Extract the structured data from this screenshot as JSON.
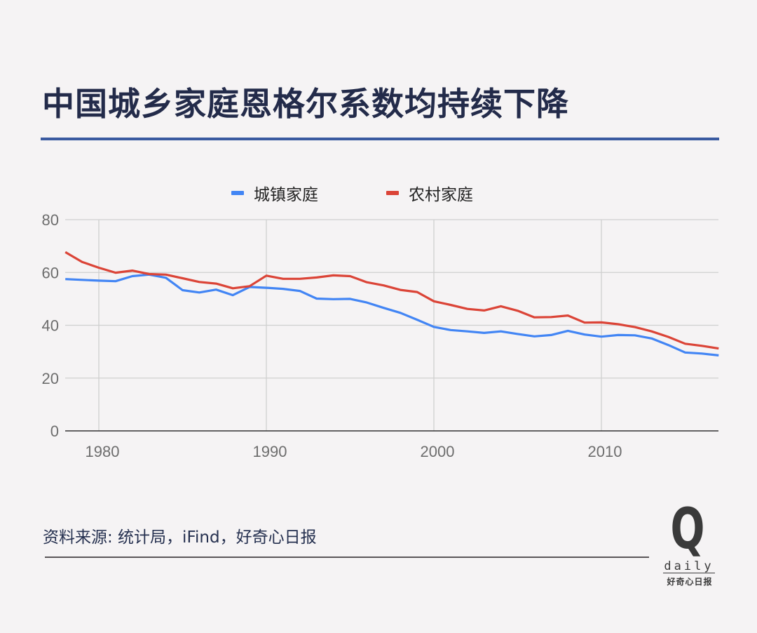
{
  "title": "中国城乡家庭恩格尔系数均持续下降",
  "legend": [
    {
      "label": "城镇家庭",
      "color": "#4285f4"
    },
    {
      "label": "农村家庭",
      "color": "#db4437"
    }
  ],
  "source": "资料来源: 统计局，iFind，好奇心日报",
  "logo": {
    "mark": "Q",
    "wordmark": "daily",
    "cn": "好奇心日报"
  },
  "colors": {
    "background": "#f5f3f4",
    "title": "#232b4a",
    "title_rule": "#3a5aa0",
    "urban": "#4285f4",
    "rural": "#db4437",
    "grid": "#cfcfcf",
    "axis": "#333333"
  },
  "chart_data": {
    "type": "line",
    "title": "中国城乡家庭恩格尔系数均持续下降",
    "xlabel": "",
    "ylabel": "",
    "x": [
      1978,
      1979,
      1980,
      1981,
      1982,
      1983,
      1984,
      1985,
      1986,
      1987,
      1988,
      1989,
      1990,
      1991,
      1992,
      1993,
      1994,
      1995,
      1996,
      1997,
      1998,
      1999,
      2000,
      2001,
      2002,
      2003,
      2004,
      2005,
      2006,
      2007,
      2008,
      2009,
      2010,
      2011,
      2012,
      2013,
      2014,
      2015,
      2016,
      2017
    ],
    "series": [
      {
        "name": "城镇家庭",
        "color": "#4285f4",
        "values": [
          57.5,
          57.2,
          56.9,
          56.7,
          58.6,
          59.2,
          58.0,
          53.3,
          52.4,
          53.5,
          51.4,
          54.5,
          54.2,
          53.8,
          53.0,
          50.1,
          49.9,
          50.0,
          48.6,
          46.6,
          44.7,
          42.1,
          39.4,
          38.2,
          37.7,
          37.1,
          37.7,
          36.7,
          35.8,
          36.3,
          37.9,
          36.5,
          35.7,
          36.3,
          36.2,
          35.0,
          32.5,
          29.7,
          29.3,
          28.6
        ]
      },
      {
        "name": "农村家庭",
        "color": "#db4437",
        "values": [
          67.7,
          64.0,
          61.8,
          59.9,
          60.7,
          59.4,
          59.2,
          57.8,
          56.4,
          55.8,
          54.0,
          54.8,
          58.8,
          57.6,
          57.6,
          58.1,
          58.9,
          58.6,
          56.3,
          55.1,
          53.4,
          52.6,
          49.1,
          47.7,
          46.2,
          45.6,
          47.2,
          45.5,
          43.0,
          43.1,
          43.7,
          41.0,
          41.1,
          40.4,
          39.3,
          37.7,
          35.6,
          33.0,
          32.2,
          31.2
        ]
      }
    ],
    "x_ticks": [
      1980,
      1990,
      2000,
      2010
    ],
    "y_ticks": [
      0,
      20,
      40,
      60,
      80
    ],
    "xlim": [
      1978,
      2017
    ],
    "ylim": [
      0,
      80
    ],
    "grid": true,
    "legend_position": "top"
  }
}
